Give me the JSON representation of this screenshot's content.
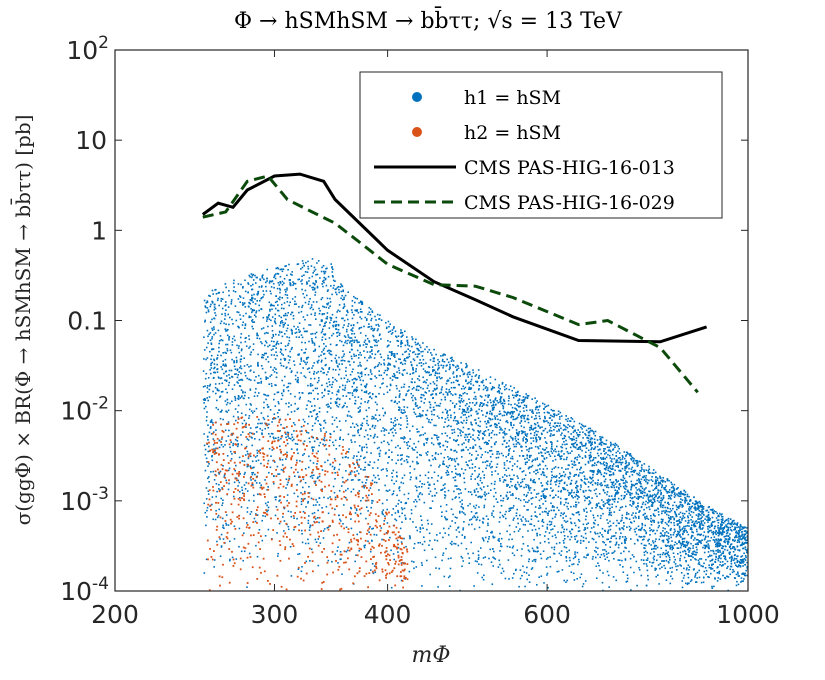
{
  "chart_data": {
    "type": "scatter",
    "title": "Φ → hSMhSM → bb̄ττ; √s = 13 TeV",
    "xlabel": "mΦ",
    "ylabel": "σ(ggΦ) × BR(Φ → hSMhSM → bb̄ττ) [pb]",
    "x_scale": "log",
    "y_scale": "log",
    "xlim": [
      200,
      1000
    ],
    "ylim": [
      0.0001,
      100
    ],
    "x_ticks": [
      200,
      300,
      400,
      600,
      1000
    ],
    "x_tick_labels": [
      "200",
      "300",
      "400",
      "600",
      "1000"
    ],
    "y_ticks": [
      0.0001,
      0.001,
      0.01,
      0.1,
      1,
      10,
      100
    ],
    "y_tick_labels": [
      {
        "base": "10",
        "exp": "-4"
      },
      {
        "base": "10",
        "exp": "-3"
      },
      {
        "base": "10",
        "exp": "-2"
      },
      {
        "base": "0.1",
        "exp": ""
      },
      {
        "base": "1",
        "exp": ""
      },
      {
        "base": "10",
        "exp": ""
      },
      {
        "base": "10",
        "exp": "2"
      }
    ],
    "grid": false,
    "legend_position": "top-right",
    "series": [
      {
        "name": "h1 = hSM",
        "kind": "scatter-region",
        "color": "#0072bd",
        "envelope": [
          [
            250,
            0.0001
          ],
          [
            250,
            0.2
          ],
          [
            270,
            0.3
          ],
          [
            300,
            0.4
          ],
          [
            330,
            0.5
          ],
          [
            345,
            0.45
          ],
          [
            360,
            0.22
          ],
          [
            400,
            0.1
          ],
          [
            450,
            0.05
          ],
          [
            500,
            0.03
          ],
          [
            600,
            0.012
          ],
          [
            700,
            0.005
          ],
          [
            800,
            0.002
          ],
          [
            900,
            0.0009
          ],
          [
            1000,
            0.0005
          ],
          [
            1000,
            0.0001
          ]
        ]
      },
      {
        "name": "h2 = hSM",
        "kind": "scatter-region",
        "color": "#d95319",
        "envelope": [
          [
            252,
            0.0001
          ],
          [
            252,
            0.007
          ],
          [
            280,
            0.01
          ],
          [
            320,
            0.008
          ],
          [
            350,
            0.005
          ],
          [
            380,
            0.002
          ],
          [
            400,
            0.0008
          ],
          [
            420,
            0.0003
          ],
          [
            430,
            0.0001
          ]
        ]
      },
      {
        "name": "CMS PAS-HIG-16-013",
        "kind": "line",
        "color": "#000000",
        "dash": "solid",
        "points": [
          [
            250,
            1.5
          ],
          [
            260,
            2.0
          ],
          [
            270,
            1.8
          ],
          [
            280,
            2.8
          ],
          [
            300,
            4.0
          ],
          [
            320,
            4.2
          ],
          [
            340,
            3.5
          ],
          [
            350,
            2.2
          ],
          [
            400,
            0.6
          ],
          [
            450,
            0.27
          ],
          [
            500,
            0.17
          ],
          [
            550,
            0.11
          ],
          [
            650,
            0.06
          ],
          [
            800,
            0.058
          ],
          [
            900,
            0.085
          ]
        ]
      },
      {
        "name": "CMS PAS-HIG-16-029",
        "kind": "line",
        "color": "#0b4a0b",
        "dash": "dashed",
        "points": [
          [
            250,
            1.4
          ],
          [
            265,
            1.6
          ],
          [
            280,
            3.5
          ],
          [
            295,
            4.0
          ],
          [
            310,
            2.2
          ],
          [
            330,
            1.6
          ],
          [
            350,
            1.2
          ],
          [
            375,
            0.7
          ],
          [
            400,
            0.42
          ],
          [
            450,
            0.25
          ],
          [
            500,
            0.24
          ],
          [
            550,
            0.18
          ],
          [
            650,
            0.09
          ],
          [
            700,
            0.1
          ],
          [
            800,
            0.05
          ],
          [
            880,
            0.016
          ]
        ]
      }
    ]
  }
}
